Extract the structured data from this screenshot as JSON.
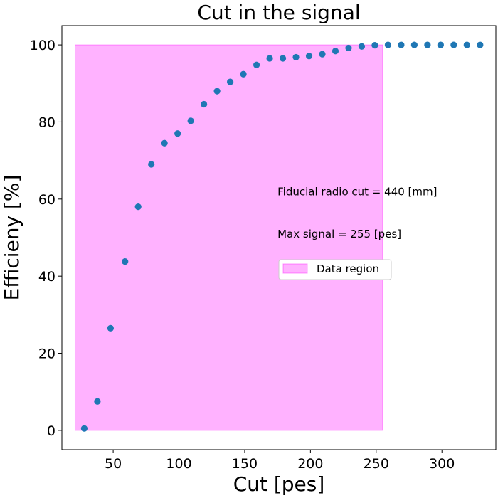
{
  "chart_data": {
    "type": "scatter",
    "title": "Cut in the signal",
    "xlabel": "Cut [pes]",
    "ylabel": "Efficieny [%]",
    "xlim": [
      11,
      341
    ],
    "ylim": [
      -5,
      105
    ],
    "xticks": [
      50,
      100,
      150,
      200,
      250,
      300
    ],
    "yticks": [
      0,
      20,
      40,
      60,
      80,
      100
    ],
    "grid": false,
    "series": [
      {
        "color": "#1f77b4",
        "x": [
          28,
          38,
          48,
          59,
          69,
          79,
          89,
          99,
          109,
          119,
          129,
          139,
          149,
          159,
          169,
          179,
          189,
          199,
          209,
          219,
          229,
          239,
          249,
          259,
          269,
          279,
          289,
          299,
          309,
          319,
          329
        ],
        "y": [
          0.5,
          7.5,
          26.5,
          43.8,
          58,
          69,
          74.5,
          77,
          80.3,
          84.6,
          88,
          90.4,
          92.4,
          94.8,
          96.5,
          96.5,
          96.8,
          97.1,
          97.6,
          98.4,
          99.2,
          99.6,
          99.9,
          100,
          100,
          100,
          100,
          100,
          100,
          100,
          100
        ]
      }
    ],
    "region": {
      "label": "Data region",
      "x0": 21,
      "x1": 255,
      "y0": 0,
      "y1": 100,
      "fill": "#ff00ff",
      "opacity": 0.3
    },
    "annotations": [
      {
        "text": "Fiducial radio cut = 440 [mm]",
        "x": 175,
        "y": 61
      },
      {
        "text": "Max signal = 255 [pes]",
        "x": 175,
        "y": 50
      }
    ],
    "legend": {
      "placement": "center-right",
      "entries": [
        "Data region"
      ]
    }
  }
}
